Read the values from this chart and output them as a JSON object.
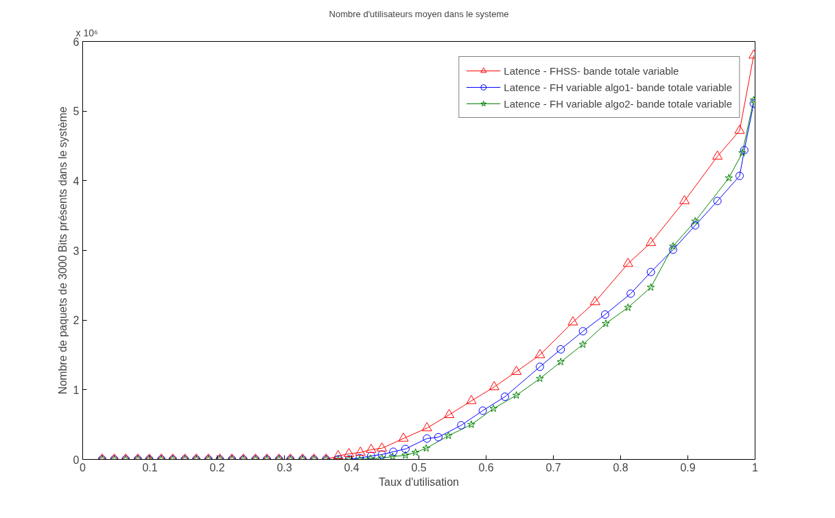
{
  "chart_data": {
    "type": "line",
    "title": "Nombre d'utilisateurs moyen dans le systeme",
    "xlabel": "Taux d'utilisation",
    "ylabel": "Nombre de paquets de 3000 Bits présents dans le système",
    "annotations": [
      "x 10⁶"
    ],
    "xlim": [
      0,
      1
    ],
    "ylim": [
      0,
      6
    ],
    "xticks": [
      0,
      0.1,
      0.2,
      0.3,
      0.4,
      0.5,
      0.6,
      0.7,
      0.8,
      0.9,
      1
    ],
    "yticks": [
      0,
      1,
      2,
      3,
      4,
      5,
      6
    ],
    "grid": false,
    "legend": "top right",
    "line_style": "solid",
    "series": [
      {
        "name": "Latence - FHSS- bande totale variable",
        "color": "#ff0000",
        "marker": "triangle",
        "x": [
          0.029,
          0.047,
          0.064,
          0.082,
          0.099,
          0.117,
          0.134,
          0.152,
          0.169,
          0.187,
          0.204,
          0.222,
          0.239,
          0.257,
          0.274,
          0.292,
          0.309,
          0.327,
          0.344,
          0.362,
          0.38,
          0.396,
          0.413,
          0.429,
          0.445,
          0.477,
          0.512,
          0.545,
          0.578,
          0.612,
          0.645,
          0.68,
          0.729,
          0.762,
          0.811,
          0.845,
          0.895,
          0.944,
          0.977,
          0.998
        ],
        "values": [
          0,
          0,
          0,
          0,
          0,
          0,
          0,
          0,
          0,
          0,
          0,
          0,
          0,
          0,
          0,
          0,
          0,
          0,
          0,
          0,
          0.05,
          0.08,
          0.1,
          0.14,
          0.16,
          0.3,
          0.45,
          0.64,
          0.84,
          1.04,
          1.26,
          1.5,
          1.97,
          2.26,
          2.81,
          3.11,
          3.71,
          4.35,
          4.72,
          5.8
        ]
      },
      {
        "name": "Latence - FH variable algo1- bande totale variable",
        "color": "#0000ff",
        "marker": "circle",
        "x": [
          0.029,
          0.047,
          0.064,
          0.082,
          0.099,
          0.117,
          0.134,
          0.152,
          0.169,
          0.187,
          0.204,
          0.222,
          0.239,
          0.257,
          0.274,
          0.292,
          0.309,
          0.327,
          0.344,
          0.362,
          0.38,
          0.396,
          0.412,
          0.429,
          0.445,
          0.462,
          0.48,
          0.512,
          0.529,
          0.563,
          0.595,
          0.628,
          0.68,
          0.711,
          0.744,
          0.777,
          0.815,
          0.845,
          0.878,
          0.911,
          0.944,
          0.977,
          0.984,
          0.998
        ],
        "values": [
          0,
          0,
          0,
          0,
          0,
          0,
          0,
          0,
          0,
          0,
          0,
          0,
          0,
          0,
          0,
          0,
          0,
          0,
          0,
          0,
          0,
          0,
          0.02,
          0.05,
          0.07,
          0.11,
          0.15,
          0.3,
          0.32,
          0.49,
          0.7,
          0.9,
          1.33,
          1.58,
          1.84,
          2.08,
          2.38,
          2.69,
          3.01,
          3.36,
          3.71,
          4.07,
          4.44,
          5.11
        ]
      },
      {
        "name": "Latence - FH variable algo2- bande totale variable",
        "color": "#008000",
        "marker": "star",
        "x": [
          0.029,
          0.047,
          0.064,
          0.082,
          0.099,
          0.117,
          0.134,
          0.152,
          0.169,
          0.187,
          0.204,
          0.222,
          0.239,
          0.257,
          0.274,
          0.292,
          0.309,
          0.327,
          0.344,
          0.362,
          0.38,
          0.396,
          0.412,
          0.428,
          0.445,
          0.461,
          0.48,
          0.495,
          0.511,
          0.544,
          0.578,
          0.611,
          0.645,
          0.68,
          0.711,
          0.744,
          0.778,
          0.811,
          0.845,
          0.878,
          0.911,
          0.961,
          0.981,
          0.998
        ],
        "values": [
          0,
          0,
          0,
          0,
          0,
          0,
          0,
          0,
          0,
          0,
          0,
          0,
          0,
          0,
          0,
          0,
          0,
          0,
          0,
          0,
          0,
          0,
          0,
          0.01,
          0.02,
          0.04,
          0.06,
          0.1,
          0.16,
          0.34,
          0.5,
          0.73,
          0.92,
          1.16,
          1.4,
          1.65,
          1.95,
          2.18,
          2.47,
          3.06,
          3.42,
          4.04,
          4.4,
          5.16
        ]
      }
    ]
  }
}
